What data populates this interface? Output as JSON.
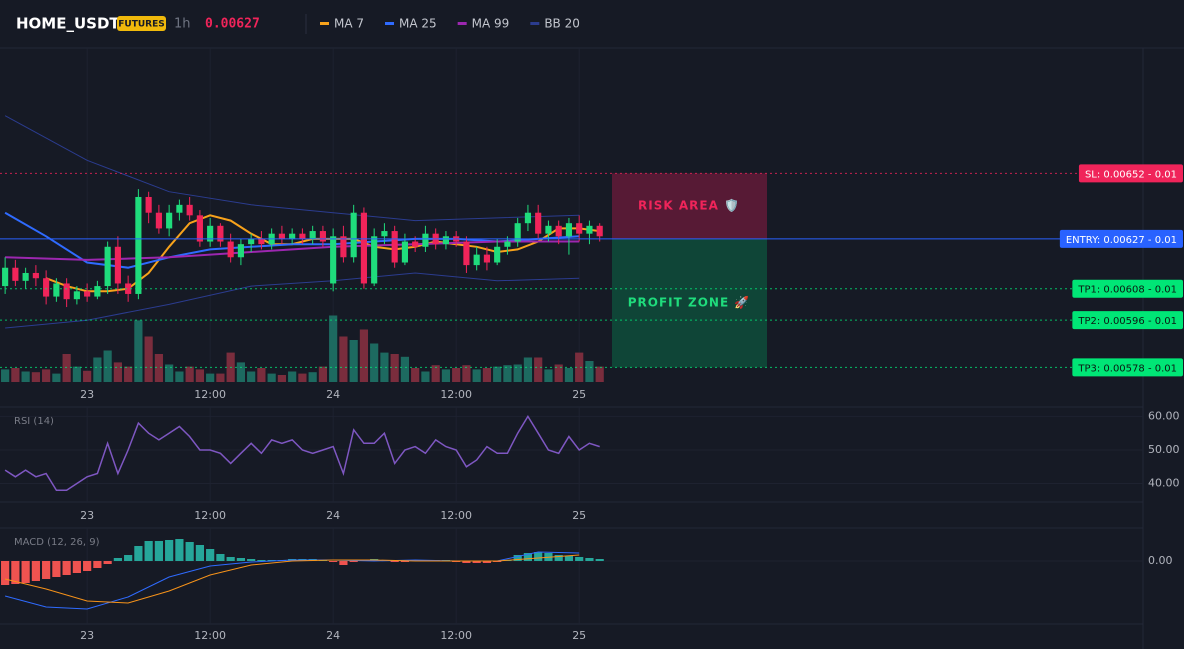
{
  "chart_data": [
    {
      "type": "candlestick",
      "title": "HOME_USDT",
      "badge": "FUTURES",
      "interval": "1h",
      "last_price": 0.00627,
      "x": [
        -8,
        -7,
        -6,
        -5,
        -4,
        -3,
        -2,
        -1,
        0,
        1,
        2,
        3,
        4,
        5,
        6,
        7,
        8,
        9,
        10,
        11,
        12,
        13,
        14,
        15,
        16,
        17,
        18,
        19,
        20,
        21,
        22,
        23,
        24,
        25,
        26,
        27,
        28,
        29,
        30,
        31,
        32,
        33,
        34,
        35,
        36,
        37,
        38,
        39,
        40,
        41,
        42,
        43,
        44,
        45,
        46,
        47,
        48,
        49,
        50
      ],
      "open": [
        0.00609,
        0.00616,
        0.00611,
        0.00614,
        0.00612,
        0.00605,
        0.0061,
        0.00604,
        0.00607,
        0.00605,
        0.00609,
        0.00624,
        0.0061,
        0.00606,
        0.00643,
        0.00637,
        0.00631,
        0.00637,
        0.0064,
        0.00636,
        0.00626,
        0.00632,
        0.00626,
        0.0062,
        0.00625,
        0.00627,
        0.00625,
        0.00629,
        0.00627,
        0.00629,
        0.00627,
        0.0063,
        0.0061,
        0.00628,
        0.0062,
        0.00637,
        0.0061,
        0.00628,
        0.0063,
        0.00618,
        0.00626,
        0.00624,
        0.00629,
        0.00625,
        0.00628,
        0.00626,
        0.00617,
        0.00621,
        0.00618,
        0.00624,
        0.00626,
        0.00633,
        0.00637,
        0.00629,
        0.00632,
        0.00628,
        0.00633,
        0.00629,
        0.00632
      ],
      "high": [
        0.0062,
        0.00619,
        0.00616,
        0.00617,
        0.00615,
        0.00612,
        0.00612,
        0.00609,
        0.0061,
        0.00611,
        0.00626,
        0.00628,
        0.00613,
        0.00646,
        0.00645,
        0.0064,
        0.0064,
        0.00642,
        0.00643,
        0.00638,
        0.00635,
        0.00633,
        0.00629,
        0.00627,
        0.00629,
        0.0063,
        0.00631,
        0.00632,
        0.00631,
        0.00631,
        0.00632,
        0.00632,
        0.00631,
        0.00632,
        0.0064,
        0.00639,
        0.00631,
        0.00633,
        0.00632,
        0.00629,
        0.00628,
        0.00632,
        0.00631,
        0.0063,
        0.0063,
        0.00628,
        0.00624,
        0.00624,
        0.00627,
        0.00628,
        0.00635,
        0.0064,
        0.0064,
        0.00634,
        0.00634,
        0.00635,
        0.00636,
        0.00634,
        0.00633
      ],
      "low": [
        0.00606,
        0.00609,
        0.00608,
        0.00609,
        0.00602,
        0.00603,
        0.00601,
        0.00602,
        0.00603,
        0.00604,
        0.00606,
        0.00606,
        0.00603,
        0.00604,
        0.00633,
        0.00629,
        0.00628,
        0.00634,
        0.00634,
        0.00624,
        0.00624,
        0.00624,
        0.00618,
        0.00617,
        0.00622,
        0.00623,
        0.00623,
        0.00625,
        0.00625,
        0.00625,
        0.00625,
        0.00624,
        0.00607,
        0.00618,
        0.00618,
        0.00608,
        0.00609,
        0.00625,
        0.00616,
        0.00617,
        0.00622,
        0.00622,
        0.00623,
        0.00623,
        0.00624,
        0.00614,
        0.00615,
        0.00615,
        0.00617,
        0.00621,
        0.00624,
        0.0063,
        0.00627,
        0.00626,
        0.00625,
        0.00621,
        0.00626,
        0.00625,
        0.00626
      ],
      "close": [
        0.00616,
        0.00611,
        0.00614,
        0.00612,
        0.00605,
        0.0061,
        0.00604,
        0.00607,
        0.00605,
        0.00609,
        0.00624,
        0.0061,
        0.00606,
        0.00643,
        0.00637,
        0.00631,
        0.00637,
        0.0064,
        0.00636,
        0.00626,
        0.00632,
        0.00626,
        0.0062,
        0.00625,
        0.00627,
        0.00625,
        0.00629,
        0.00627,
        0.00629,
        0.00627,
        0.0063,
        0.00626,
        0.00628,
        0.0062,
        0.00637,
        0.0061,
        0.00628,
        0.0063,
        0.00618,
        0.00626,
        0.00624,
        0.00629,
        0.00625,
        0.00628,
        0.00626,
        0.00617,
        0.00621,
        0.00618,
        0.00624,
        0.00626,
        0.00633,
        0.00637,
        0.00629,
        0.00632,
        0.00628,
        0.00633,
        0.00629,
        0.00632,
        0.00628
      ],
      "up_color": "#1fdc7c",
      "down_color": "#f0245a",
      "volume": [
        18,
        20,
        15,
        14,
        18,
        12,
        40,
        22,
        16,
        35,
        45,
        28,
        22,
        88,
        65,
        40,
        25,
        15,
        22,
        18,
        12,
        12,
        42,
        28,
        15,
        20,
        12,
        10,
        15,
        12,
        14,
        22,
        95,
        65,
        60,
        75,
        55,
        42,
        40,
        36,
        20,
        15,
        24,
        18,
        20,
        24,
        18,
        20,
        22,
        24,
        25,
        35,
        35,
        18,
        25,
        20,
        42,
        30,
        22
      ],
      "volume_ylim": [
        0,
        100
      ],
      "volume_up_color": "#1d6a60",
      "volume_down_color": "#7a2d3d",
      "series": [
        {
          "name": "MA 7",
          "color": "#f7a21b",
          "x": [
            -4,
            -2,
            0,
            2,
            4,
            6,
            8,
            10,
            12,
            14,
            16,
            18,
            20,
            22,
            24,
            26,
            28,
            30,
            32,
            34,
            36,
            38,
            40,
            42,
            44,
            46,
            48,
            50
          ],
          "values": [
            0.00612,
            0.00609,
            0.00607,
            0.00607,
            0.00608,
            0.00614,
            0.00624,
            0.00633,
            0.00636,
            0.00634,
            0.00629,
            0.00625,
            0.00625,
            0.00627,
            0.00627,
            0.00627,
            0.00624,
            0.00623,
            0.00624,
            0.00626,
            0.00625,
            0.00624,
            0.00622,
            0.00623,
            0.00626,
            0.00631,
            0.00631,
            0.0063
          ]
        },
        {
          "name": "MA 25",
          "color": "#2f6bff",
          "x": [
            -8,
            -4,
            0,
            4,
            8,
            12,
            16,
            20,
            24,
            28,
            32,
            36,
            40,
            44,
            48
          ],
          "values": [
            0.00637,
            0.00628,
            0.00618,
            0.00616,
            0.0062,
            0.00623,
            0.00624,
            0.00625,
            0.00625,
            0.00626,
            0.00627,
            0.00627,
            0.00626,
            0.00627,
            0.00628
          ]
        },
        {
          "name": "MA 99",
          "color": "#9c27b0",
          "x": [
            -8,
            0,
            8,
            16,
            24,
            32,
            40,
            48
          ],
          "values": [
            0.0062,
            0.00619,
            0.0062,
            0.00622,
            0.00624,
            0.00625,
            0.00626,
            0.00626
          ]
        },
        {
          "name": "BB 20",
          "color": "#2b3c8f",
          "x": [
            -8,
            0,
            8,
            16,
            24,
            32,
            40,
            48
          ],
          "values": [
            0.00674,
            0.00657,
            0.00645,
            0.0064,
            0.00637,
            0.00634,
            0.00635,
            0.00636
          ],
          "lower": [
            0.00593,
            0.00596,
            0.00602,
            0.00609,
            0.00611,
            0.00614,
            0.00611,
            0.00612
          ]
        }
      ],
      "levels": [
        {
          "label": "SL: 0.00652 - 0.01",
          "price": 0.00652,
          "color": "#f0245a",
          "label_text_color": "#ffffff",
          "style": "dotted"
        },
        {
          "label": "ENTRY: 0.00627 - 0.01",
          "price": 0.00627,
          "color": "#2962ff",
          "label_text_color": "#ffffff",
          "style": "solid"
        },
        {
          "label": "TP1: 0.00608 - 0.01",
          "price": 0.00608,
          "color": "#00e676",
          "label_text_color": "#0b1a12",
          "style": "dotted"
        },
        {
          "label": "TP2: 0.00596 - 0.01",
          "price": 0.00596,
          "color": "#00e676",
          "label_text_color": "#0b1a12",
          "style": "dotted"
        },
        {
          "label": "TP3: 0.00578 - 0.01",
          "price": 0.00578,
          "color": "#00e676",
          "label_text_color": "#0b1a12",
          "style": "dotted"
        }
      ],
      "zones": [
        {
          "label": "RISK AREA 🛡️",
          "color": "#5e1b37",
          "text_color": "#f0245a"
        },
        {
          "label": "PROFIT ZONE 🚀",
          "color": "#0e4a3a",
          "text_color": "#1fdc7c"
        }
      ],
      "xlim": [
        -8.5,
        103
      ],
      "ylim": [
        0.005724,
        0.0069985
      ],
      "xticks": [
        {
          "value": 0,
          "label": "23"
        },
        {
          "value": 12,
          "label": "12:00"
        },
        {
          "value": 24,
          "label": "24"
        },
        {
          "value": 36,
          "label": "12:00"
        },
        {
          "value": 48,
          "label": "25"
        }
      ],
      "grid": true
    },
    {
      "type": "line",
      "title": "RSI (14)",
      "color": "#7e57c2",
      "x": [
        -8,
        -7,
        -6,
        -5,
        -4,
        -3,
        -2,
        -1,
        0,
        1,
        2,
        3,
        4,
        5,
        6,
        7,
        8,
        9,
        10,
        11,
        12,
        13,
        14,
        15,
        16,
        17,
        18,
        19,
        20,
        21,
        22,
        23,
        24,
        25,
        26,
        27,
        28,
        29,
        30,
        31,
        32,
        33,
        34,
        35,
        36,
        37,
        38,
        39,
        40,
        41,
        42,
        43,
        44,
        45,
        46,
        47,
        48,
        49,
        50
      ],
      "values": [
        44,
        42,
        44,
        42,
        43,
        38,
        38,
        40,
        42,
        43,
        52,
        43,
        50,
        58,
        55,
        53,
        55,
        57,
        54,
        50,
        50,
        49,
        46,
        49,
        52,
        49,
        53,
        52,
        53,
        50,
        49,
        50,
        51,
        43,
        56,
        52,
        52,
        55,
        46,
        50,
        51,
        49,
        53,
        51,
        50,
        45,
        47,
        51,
        49,
        49,
        55,
        60,
        55,
        50,
        49,
        54,
        50,
        52,
        51
      ],
      "xlim": [
        -8.5,
        103
      ],
      "ylim": [
        34.5,
        62.8
      ],
      "xticks": [
        {
          "value": 0,
          "label": "23"
        },
        {
          "value": 12,
          "label": "12:00"
        },
        {
          "value": 24,
          "label": "24"
        },
        {
          "value": 36,
          "label": "12:00"
        },
        {
          "value": 48,
          "label": "25"
        }
      ],
      "yticks": [
        {
          "value": 60,
          "label": "60.00"
        },
        {
          "value": 50,
          "label": "50.00"
        },
        {
          "value": 40,
          "label": "40.00"
        }
      ],
      "grid": true
    },
    {
      "type": "macd",
      "title": "MACD (12, 26, 9)",
      "x": [
        -8,
        -7,
        -6,
        -5,
        -4,
        -3,
        -2,
        -1,
        0,
        1,
        2,
        3,
        4,
        5,
        6,
        7,
        8,
        9,
        10,
        11,
        12,
        13,
        14,
        15,
        16,
        17,
        18,
        19,
        20,
        21,
        22,
        23,
        24,
        25,
        26,
        27,
        28,
        29,
        30,
        31,
        32,
        33,
        34,
        35,
        36,
        37,
        38,
        39,
        40,
        41,
        42,
        43,
        44,
        45,
        46,
        47,
        48,
        49,
        50
      ],
      "histogram": [
        -2.4e-05,
        -2.3e-05,
        -2.2e-05,
        -2e-05,
        -1.8e-05,
        -1.6e-05,
        -1.4e-05,
        -1.2e-05,
        -1e-05,
        -7e-06,
        -3e-06,
        3e-06,
        6e-06,
        1.5e-05,
        2e-05,
        2e-05,
        2.1e-05,
        2.2e-05,
        1.9e-05,
        1.6e-05,
        1.2e-05,
        7e-06,
        4e-06,
        3e-06,
        2e-06,
        1e-06,
        1e-06,
        1e-06,
        2e-06,
        2e-06,
        2e-06,
        1e-06,
        -1e-06,
        -4e-06,
        -1e-06,
        1e-06,
        2e-06,
        1e-06,
        -1e-06,
        -1e-06,
        1e-06,
        1e-06,
        1e-06,
        1e-06,
        -1e-06,
        -2e-06,
        -2e-06,
        -2e-06,
        -1e-06,
        1e-06,
        6e-06,
        8e-06,
        9e-06,
        8e-06,
        6e-06,
        5e-06,
        4e-06,
        3e-06,
        2e-06
      ],
      "up_color": "#26a69a",
      "down_color": "#ef5350",
      "macd_line": {
        "color": "#2f6bff",
        "x": [
          -8,
          -4,
          0,
          4,
          8,
          12,
          16,
          20,
          24,
          28,
          32,
          36,
          40,
          44,
          48
        ],
        "values": [
          -3.5e-05,
          -4.6e-05,
          -4.8e-05,
          -3.6e-05,
          -1.6e-05,
          -5e-06,
          -1e-06,
          1e-06,
          1e-06,
          0,
          1e-06,
          0,
          0,
          9e-06,
          8e-06
        ]
      },
      "signal_line": {
        "color": "#f7931a",
        "x": [
          -8,
          -4,
          0,
          4,
          8,
          12,
          16,
          20,
          24,
          28,
          32,
          36,
          40,
          44,
          48
        ],
        "values": [
          -1.8e-05,
          -2.8e-05,
          -4e-05,
          -4.2e-05,
          -3e-05,
          -1.4e-05,
          -4e-06,
          0,
          1e-06,
          1e-06,
          0,
          0,
          0,
          3e-06,
          6e-06
        ]
      },
      "xlim": [
        -8.5,
        103
      ],
      "ylim": [
        -6.3e-05,
        3.3e-05
      ],
      "xticks": [
        {
          "value": 0,
          "label": "23"
        },
        {
          "value": 12,
          "label": "12:00"
        },
        {
          "value": 24,
          "label": "24"
        },
        {
          "value": 36,
          "label": "12:00"
        },
        {
          "value": 48,
          "label": "25"
        }
      ],
      "yticks": [
        {
          "value": 0,
          "label": "0.00"
        }
      ],
      "grid": true
    }
  ]
}
